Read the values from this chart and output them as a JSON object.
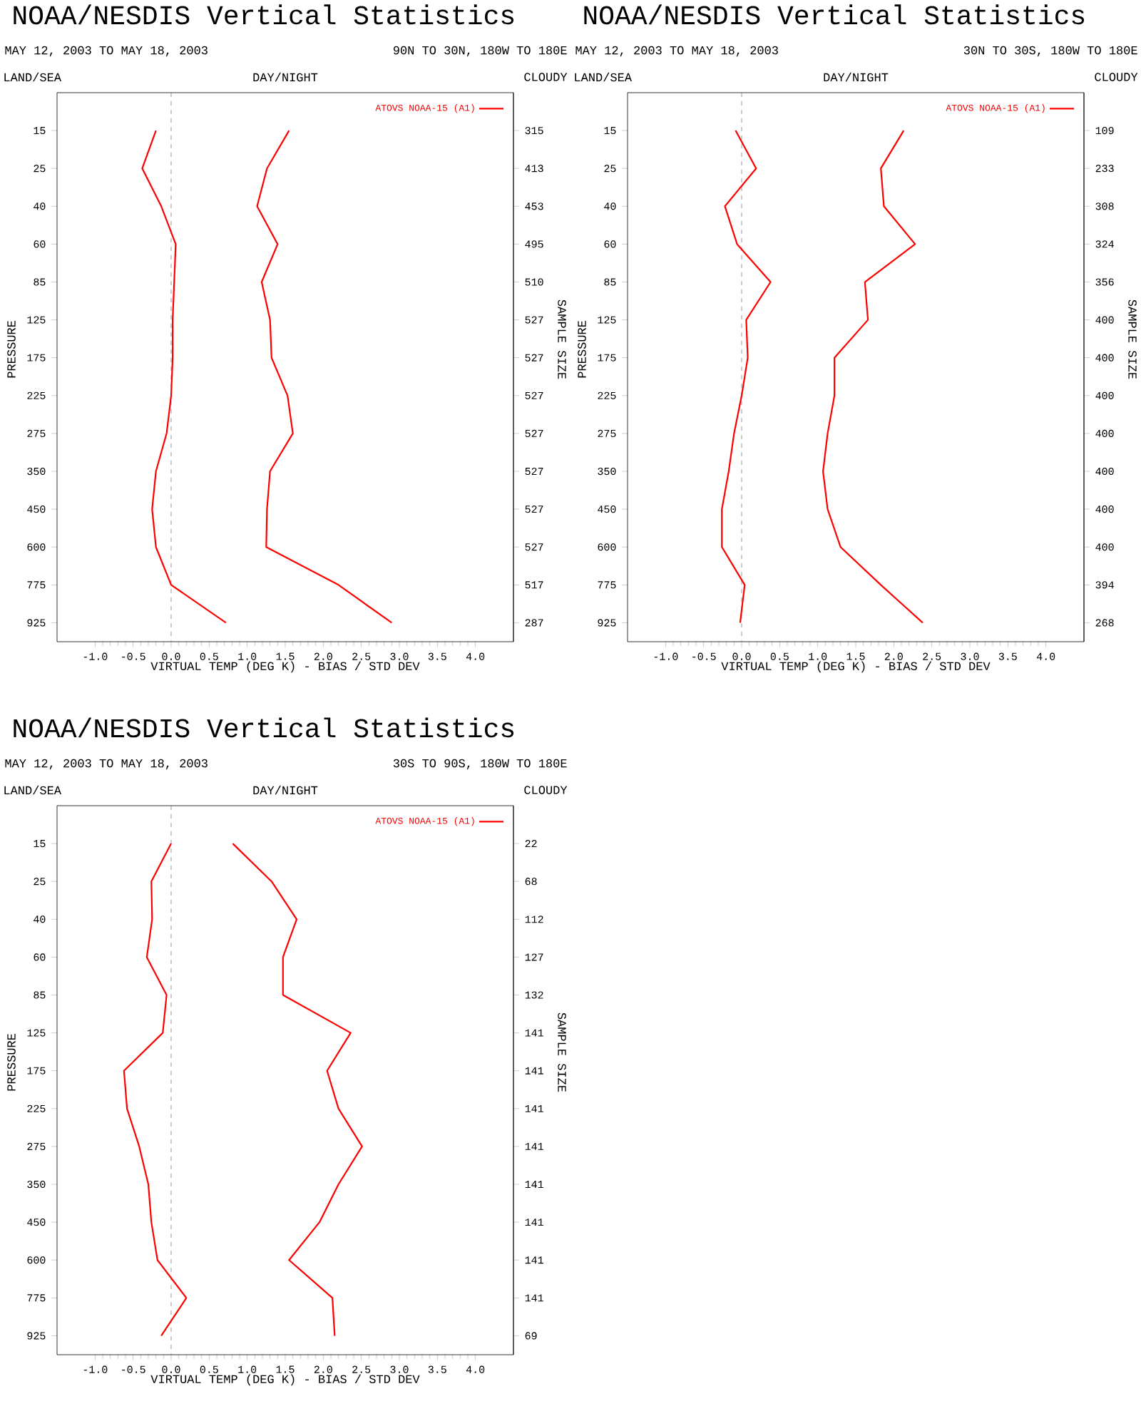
{
  "chart_data": [
    {
      "type": "line",
      "title": "NOAA/NESDIS Vertical Statistics",
      "subtitle": "MAY 12, 2003 TO MAY 18, 2003",
      "annotations": [
        "90N TO 30N, 180W TO 180E",
        "LAND/SEA",
        "DAY/NIGHT",
        "CLOUDY"
      ],
      "orientation": "horizontal",
      "xlabel": "VIRTUAL TEMP (DEG K) - BIAS / STD DEV",
      "ylabel": "PRESSURE",
      "y2label": "SAMPLE SIZE",
      "categories": [
        "15",
        "25",
        "40",
        "60",
        "85",
        "125",
        "175",
        "225",
        "275",
        "350",
        "450",
        "600",
        "775",
        "925"
      ],
      "y2_categories": [
        "315",
        "413",
        "453",
        "495",
        "510",
        "527",
        "527",
        "527",
        "527",
        "527",
        "527",
        "527",
        "517",
        "287"
      ],
      "xlim": [
        -1.5,
        4.5
      ],
      "xticks": [
        {
          "value": -1,
          "label": "-1.0"
        },
        -0.5,
        {
          "value": 0,
          "label": "0.0"
        },
        0.5,
        {
          "value": 1,
          "label": "1.0"
        },
        1.5,
        {
          "value": 2,
          "label": "2.0"
        },
        2.5,
        {
          "value": 3,
          "label": "3.0"
        },
        3.5,
        {
          "value": 4,
          "label": "4.0"
        }
      ],
      "series": [
        {
          "name": "ATOVS NOAA-15 (A1)",
          "color": "#ff0000",
          "values": [
            -0.2,
            -0.38,
            -0.13,
            0.06,
            0.04,
            0.02,
            0.02,
            0.0,
            -0.06,
            -0.2,
            -0.25,
            -0.2,
            0.0,
            0.72
          ]
        },
        {
          "color": "#ff0000",
          "values": [
            1.55,
            1.26,
            1.13,
            1.4,
            1.19,
            1.3,
            1.32,
            1.53,
            1.6,
            1.3,
            1.26,
            1.25,
            2.2,
            2.9
          ]
        }
      ],
      "ref_lines": [
        {
          "axis": "x",
          "value": 0,
          "color": "#808080",
          "line_style": "dashed"
        }
      ],
      "legend": "top right"
    },
    {
      "type": "line",
      "title": "NOAA/NESDIS Vertical Statistics",
      "subtitle": "MAY 12, 2003 TO MAY 18, 2003",
      "annotations": [
        "30N TO 30S, 180W TO 180E",
        "LAND/SEA",
        "DAY/NIGHT",
        "CLOUDY"
      ],
      "orientation": "horizontal",
      "xlabel": "VIRTUAL TEMP (DEG K) - BIAS / STD DEV",
      "ylabel": "PRESSURE",
      "y2label": "SAMPLE SIZE",
      "categories": [
        "15",
        "25",
        "40",
        "60",
        "85",
        "125",
        "175",
        "225",
        "275",
        "350",
        "450",
        "600",
        "775",
        "925"
      ],
      "y2_categories": [
        "109",
        "233",
        "308",
        "324",
        "356",
        "400",
        "400",
        "400",
        "400",
        "400",
        "400",
        "400",
        "394",
        "268"
      ],
      "xlim": [
        -1.5,
        4.5
      ],
      "xticks": [
        {
          "value": -1,
          "label": "-1.0"
        },
        -0.5,
        {
          "value": 0,
          "label": "0.0"
        },
        0.5,
        {
          "value": 1,
          "label": "1.0"
        },
        1.5,
        {
          "value": 2,
          "label": "2.0"
        },
        2.5,
        {
          "value": 3,
          "label": "3.0"
        },
        3.5,
        {
          "value": 4,
          "label": "4.0"
        }
      ],
      "series": [
        {
          "name": "ATOVS NOAA-15 (A1)",
          "color": "#ff0000",
          "values": [
            -0.08,
            0.19,
            -0.22,
            -0.06,
            0.38,
            0.06,
            0.08,
            0.0,
            -0.1,
            -0.17,
            -0.26,
            -0.26,
            0.04,
            -0.02
          ]
        },
        {
          "color": "#ff0000",
          "values": [
            2.13,
            1.83,
            1.87,
            2.28,
            1.62,
            1.66,
            1.22,
            1.22,
            1.13,
            1.07,
            1.13,
            1.3,
            1.83,
            2.38
          ]
        }
      ],
      "ref_lines": [
        {
          "axis": "x",
          "value": 0,
          "color": "#808080",
          "line_style": "dashed"
        }
      ],
      "legend": "top right"
    },
    {
      "type": "line",
      "title": "NOAA/NESDIS Vertical Statistics",
      "subtitle": "MAY 12, 2003 TO MAY 18, 2003",
      "annotations": [
        "30S TO 90S, 180W TO 180E",
        "LAND/SEA",
        "DAY/NIGHT",
        "CLOUDY"
      ],
      "orientation": "horizontal",
      "xlabel": "VIRTUAL TEMP (DEG K) - BIAS / STD DEV",
      "ylabel": "PRESSURE",
      "y2label": "SAMPLE SIZE",
      "categories": [
        "15",
        "25",
        "40",
        "60",
        "85",
        "125",
        "175",
        "225",
        "275",
        "350",
        "450",
        "600",
        "775",
        "925"
      ],
      "y2_categories": [
        "22",
        "68",
        "112",
        "127",
        "132",
        "141",
        "141",
        "141",
        "141",
        "141",
        "141",
        "141",
        "141",
        "69"
      ],
      "xlim": [
        -1.5,
        4.5
      ],
      "xticks": [
        {
          "value": -1,
          "label": "-1.0"
        },
        -0.5,
        {
          "value": 0,
          "label": "0.0"
        },
        0.5,
        {
          "value": 1,
          "label": "1.0"
        },
        1.5,
        {
          "value": 2,
          "label": "2.0"
        },
        2.5,
        {
          "value": 3,
          "label": "3.0"
        },
        3.5,
        {
          "value": 4,
          "label": "4.0"
        }
      ],
      "series": [
        {
          "name": "ATOVS NOAA-15 (A1)",
          "color": "#ff0000",
          "values": [
            0.0,
            -0.26,
            -0.25,
            -0.32,
            -0.06,
            -0.11,
            -0.62,
            -0.58,
            -0.42,
            -0.3,
            -0.26,
            -0.18,
            0.2,
            -0.13
          ]
        },
        {
          "color": "#ff0000",
          "values": [
            0.81,
            1.32,
            1.65,
            1.47,
            1.47,
            2.36,
            2.05,
            2.2,
            2.51,
            2.2,
            1.95,
            1.55,
            2.12,
            2.15
          ]
        }
      ],
      "ref_lines": [
        {
          "axis": "x",
          "value": 0,
          "color": "#808080",
          "line_style": "dashed"
        }
      ],
      "legend": "top right"
    }
  ]
}
